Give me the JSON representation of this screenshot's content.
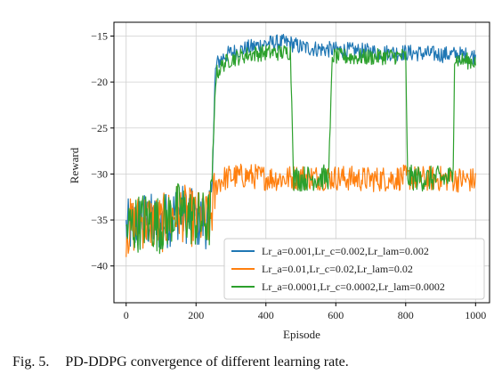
{
  "chart_data": {
    "type": "line",
    "xlabel": "Episode",
    "ylabel": "Reward",
    "xlim": [
      -35,
      1040
    ],
    "ylim": [
      -44,
      -13.5
    ],
    "xticks": [
      0,
      200,
      400,
      600,
      800,
      1000
    ],
    "yticks": [
      -40,
      -35,
      -30,
      -25,
      -20,
      -15
    ],
    "xtick_labels": [
      "0",
      "200",
      "400",
      "600",
      "800",
      "1000"
    ],
    "ytick_labels": [
      "−40",
      "−35",
      "−30",
      "−25",
      "−20",
      "−15"
    ],
    "grid": true,
    "legend_position": "lower-right",
    "series": [
      {
        "name": "Lr_a=0.001,Lr_c=0.002,Lr_lam=0.002",
        "color": "#1f77b4",
        "x": [
          0,
          50,
          100,
          150,
          200,
          240,
          250,
          255,
          260,
          280,
          300,
          350,
          400,
          450,
          470,
          500,
          550,
          600,
          650,
          700,
          750,
          800,
          850,
          900,
          950,
          1000
        ],
        "y": [
          -36,
          -35,
          -35.5,
          -34,
          -35,
          -35,
          -26,
          -19,
          -18,
          -17.2,
          -16.8,
          -16.3,
          -15.8,
          -15.7,
          -15.8,
          -16.2,
          -16.4,
          -16.5,
          -16.6,
          -16.7,
          -16.8,
          -16.8,
          -16.9,
          -17.0,
          -17.0,
          -17.2
        ]
      },
      {
        "name": "Lr_a=0.01,Lr_c=0.02,Lr_lam=0.02",
        "color": "#ff7f0e",
        "x": [
          0,
          50,
          100,
          150,
          200,
          240,
          250,
          260,
          280,
          300,
          350,
          400,
          450,
          500,
          550,
          600,
          650,
          700,
          750,
          800,
          850,
          900,
          950,
          1000
        ],
        "y": [
          -36,
          -35,
          -35.5,
          -34,
          -35,
          -35,
          -33,
          -31,
          -30.5,
          -30.3,
          -30.2,
          -30.4,
          -30.5,
          -30.3,
          -30.4,
          -30.4,
          -30.5,
          -30.6,
          -30.5,
          -30.4,
          -30.5,
          -30.5,
          -30.6,
          -30.7
        ]
      },
      {
        "name": "Lr_a=0.0001,Lr_c=0.0002,Lr_lam=0.0002",
        "color": "#2ca02c",
        "x": [
          0,
          50,
          100,
          150,
          200,
          240,
          250,
          255,
          260,
          280,
          300,
          350,
          400,
          450,
          470,
          480,
          500,
          550,
          580,
          590,
          600,
          650,
          700,
          750,
          800,
          805,
          810,
          850,
          900,
          935,
          940,
          950,
          1000
        ],
        "y": [
          -36,
          -35,
          -35.5,
          -34,
          -35,
          -35,
          -27,
          -20,
          -19,
          -18,
          -17.5,
          -17.0,
          -16.8,
          -16.8,
          -16.7,
          -30.5,
          -30.5,
          -30.4,
          -30.3,
          -17.2,
          -17.2,
          -17.3,
          -17.3,
          -17.2,
          -17.2,
          -30.3,
          -30.4,
          -30.5,
          -30.5,
          -30.4,
          -17.5,
          -17.6,
          -17.8
        ]
      }
    ]
  },
  "caption": {
    "label": "Fig. 5.",
    "text": "PD-DDPG convergence of different learning rate."
  }
}
